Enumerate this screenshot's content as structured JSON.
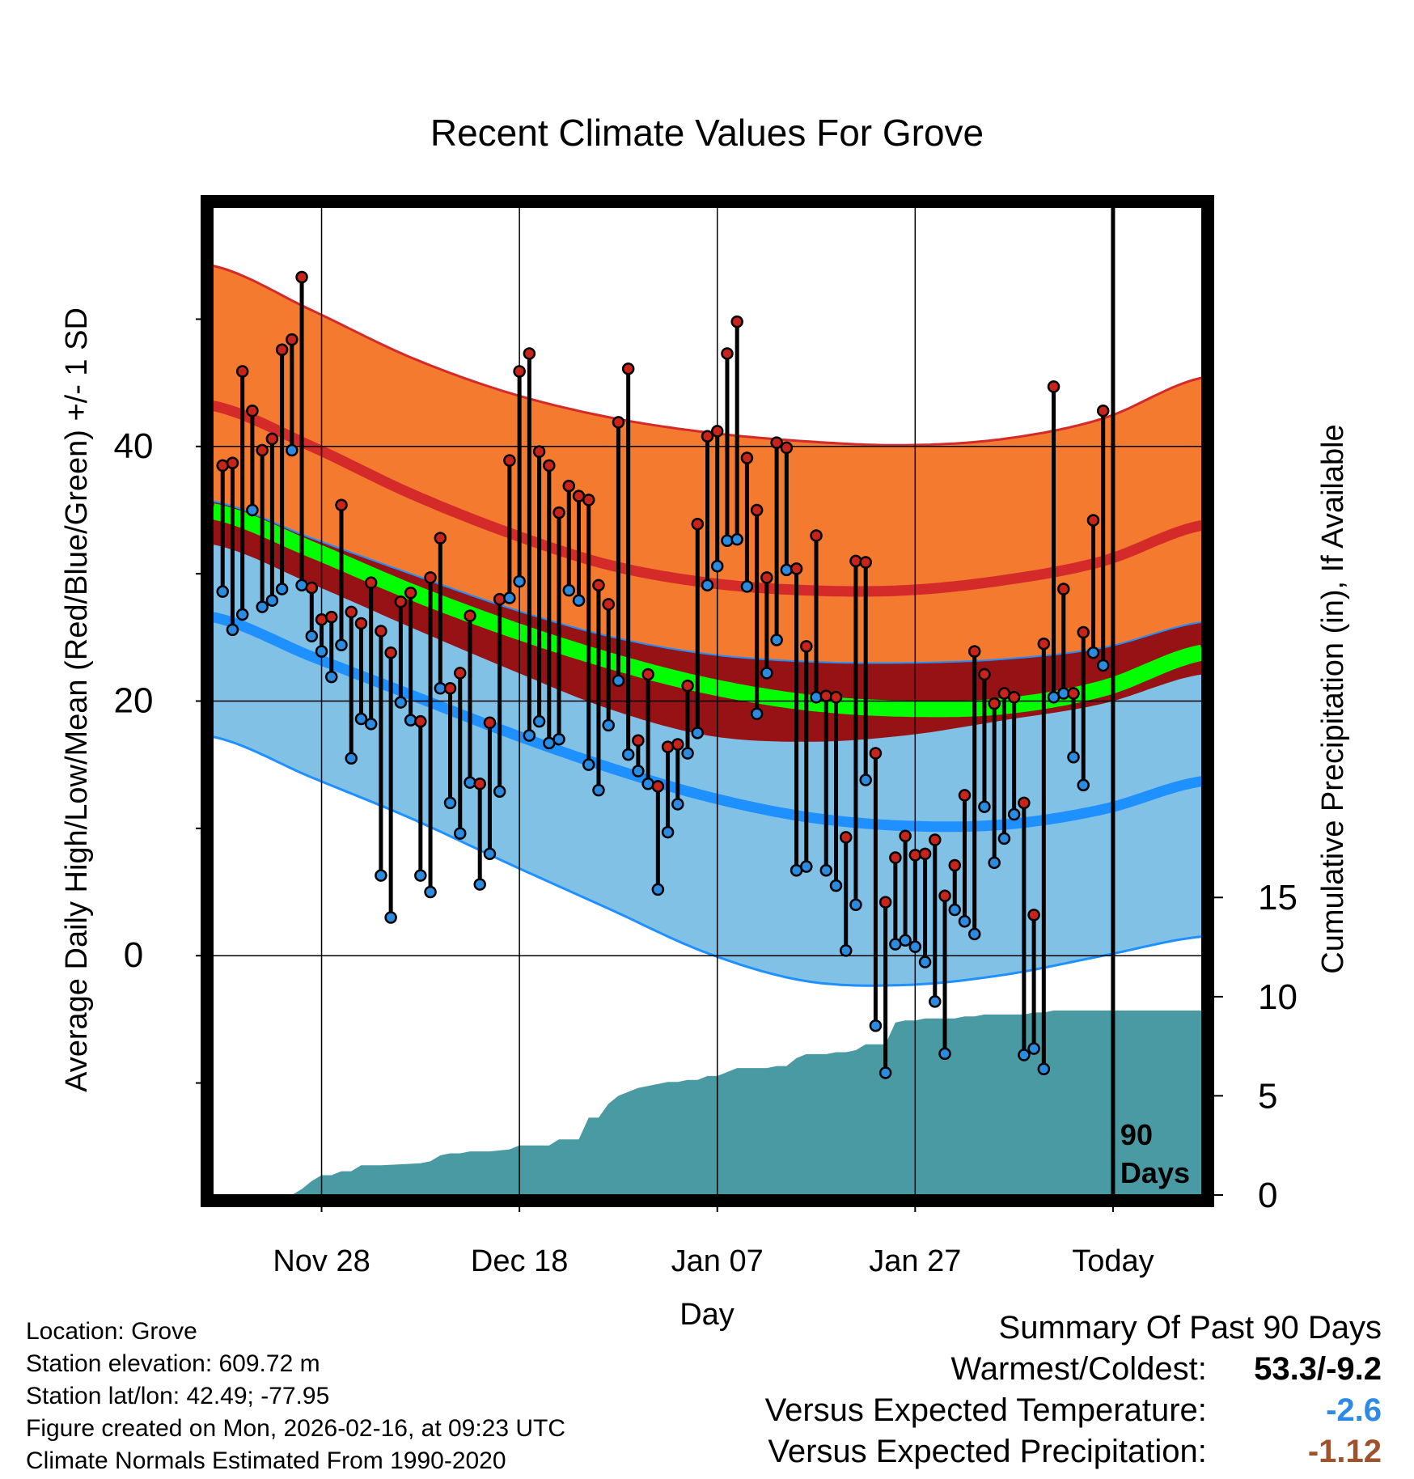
{
  "chart_data": {
    "type": "line",
    "title": "Recent Climate Values For Grove",
    "xlabel": "Day",
    "ylabel": "Average Daily High/Low/Mean (Red/Blue/Green) +/- 1 SD",
    "ylabel_right": "Cumulative Precipitation (in), If Available",
    "x_ticks": [
      "Nov 28",
      "Dec 18",
      "Jan 07",
      "Jan 27",
      "Today"
    ],
    "x_tick_days": [
      10,
      30,
      50,
      70,
      90
    ],
    "xlim": [
      -1,
      99
    ],
    "y_ticks": [
      0,
      20,
      40
    ],
    "ylim": [
      -18.8,
      58.8
    ],
    "y2_ticks": [
      0,
      5,
      10,
      15
    ],
    "y2lim": [
      0,
      49.8
    ],
    "today_marker_label": "90 Days",
    "today_day": 90,
    "normal_high": {
      "mean_days": [
        -1,
        9,
        19,
        29,
        39,
        49,
        59,
        69,
        79,
        89,
        99
      ],
      "mean": [
        43.2,
        40.0,
        36.3,
        33.2,
        30.7,
        29.3,
        28.7,
        28.7,
        29.5,
        31.0,
        33.8
      ],
      "plus_sd": [
        54.2,
        50.7,
        47.0,
        44.2,
        42.3,
        41.1,
        40.4,
        40.1,
        40.6,
        42.2,
        45.4
      ],
      "minus_sd": [
        32.3,
        29.2,
        25.8,
        22.5,
        19.4,
        17.3,
        16.8,
        17.3,
        18.5,
        19.8,
        22.1
      ]
    },
    "normal_low": {
      "mean": [
        26.6,
        23.5,
        20.5,
        17.5,
        14.8,
        12.5,
        10.9,
        10.2,
        10.3,
        11.5,
        13.7
      ],
      "plus_sd": [
        35.7,
        32.8,
        30.0,
        27.3,
        25.1,
        23.7,
        23.1,
        23.0,
        23.3,
        24.2,
        26.2
      ],
      "minus_sd": [
        17.2,
        14.0,
        10.8,
        7.2,
        3.7,
        0.2,
        -2.0,
        -2.3,
        -1.5,
        0.0,
        1.5
      ]
    },
    "normal_mean": {
      "mean": [
        34.9,
        31.9,
        28.6,
        25.7,
        23.2,
        21.2,
        19.9,
        19.4,
        19.6,
        21.0,
        23.8
      ]
    },
    "series": [
      {
        "name": "Observed High",
        "days": [
          0,
          1,
          2,
          3,
          4,
          5,
          6,
          7,
          8,
          9,
          10,
          11,
          12,
          13,
          14,
          15,
          16,
          17,
          18,
          19,
          20,
          21,
          22,
          23,
          24,
          25,
          26,
          27,
          28,
          29,
          30,
          31,
          32,
          33,
          34,
          35,
          36,
          37,
          38,
          39,
          40,
          41,
          42,
          43,
          44,
          45,
          46,
          47,
          48,
          49,
          50,
          51,
          52,
          53,
          54,
          55,
          56,
          57,
          58,
          59,
          60,
          61,
          62,
          63,
          64,
          65,
          66,
          67,
          68,
          69,
          70,
          71,
          72,
          73,
          74,
          75,
          76,
          77,
          78,
          79,
          80,
          81,
          82,
          83,
          84,
          85,
          86,
          87,
          88,
          89
        ],
        "values": [
          38.5,
          38.7,
          45.9,
          42.8,
          39.7,
          40.6,
          47.6,
          48.4,
          53.3,
          28.9,
          26.4,
          26.6,
          35.4,
          27.0,
          26.1,
          29.3,
          25.5,
          23.8,
          27.8,
          28.5,
          18.4,
          29.7,
          32.8,
          21.0,
          22.2,
          26.7,
          13.5,
          18.3,
          28.0,
          38.9,
          45.9,
          47.3,
          39.6,
          38.5,
          34.8,
          36.9,
          36.1,
          35.8,
          29.1,
          27.6,
          41.9,
          46.1,
          16.9,
          22.1,
          13.3,
          16.4,
          16.6,
          21.2,
          33.9,
          40.8,
          41.2,
          47.3,
          49.8,
          39.1,
          35.0,
          29.7,
          40.3,
          39.9,
          30.4,
          24.3,
          33.0,
          20.4,
          20.3,
          9.3,
          31.0,
          30.9,
          15.9,
          4.2,
          7.7,
          9.4,
          7.9,
          8.0,
          9.1,
          4.7,
          7.1,
          12.6,
          23.9,
          22.1,
          19.8,
          20.6,
          20.3,
          12.0,
          3.2,
          24.5,
          44.7,
          28.8,
          20.6,
          25.4,
          34.2,
          42.8
        ]
      },
      {
        "name": "Observed Low",
        "days": [
          0,
          1,
          2,
          3,
          4,
          5,
          6,
          7,
          8,
          9,
          10,
          11,
          12,
          13,
          14,
          15,
          16,
          17,
          18,
          19,
          20,
          21,
          22,
          23,
          24,
          25,
          26,
          27,
          28,
          29,
          30,
          31,
          32,
          33,
          34,
          35,
          36,
          37,
          38,
          39,
          40,
          41,
          42,
          43,
          44,
          45,
          46,
          47,
          48,
          49,
          50,
          51,
          52,
          53,
          54,
          55,
          56,
          57,
          58,
          59,
          60,
          61,
          62,
          63,
          64,
          65,
          66,
          67,
          68,
          69,
          70,
          71,
          72,
          73,
          74,
          75,
          76,
          77,
          78,
          79,
          80,
          81,
          82,
          83,
          84,
          85,
          86,
          87,
          88,
          89
        ],
        "values": [
          28.6,
          25.6,
          26.8,
          35.0,
          27.4,
          27.9,
          28.8,
          39.7,
          29.1,
          25.1,
          23.9,
          21.9,
          24.4,
          15.5,
          18.6,
          18.2,
          6.3,
          3.0,
          19.9,
          18.5,
          6.3,
          5.0,
          21.0,
          12.0,
          9.6,
          13.6,
          5.6,
          8.0,
          12.9,
          28.1,
          29.4,
          17.3,
          18.4,
          16.7,
          17.0,
          28.7,
          27.9,
          15.0,
          13.0,
          18.1,
          21.6,
          15.8,
          14.5,
          13.5,
          5.2,
          9.7,
          11.9,
          15.9,
          17.5,
          29.1,
          30.6,
          32.6,
          32.7,
          29.0,
          19.0,
          22.2,
          24.8,
          30.3,
          6.7,
          7.0,
          20.3,
          6.7,
          5.5,
          0.4,
          4.0,
          13.8,
          -5.5,
          -9.2,
          0.9,
          1.2,
          0.7,
          -0.5,
          -3.6,
          -7.7,
          3.6,
          2.7,
          1.7,
          11.7,
          7.3,
          9.2,
          11.1,
          -7.8,
          -7.3,
          -8.9,
          20.3,
          20.6,
          15.6,
          13.4,
          23.8,
          22.8
        ]
      },
      {
        "name": "Cumulative Precipitation",
        "days": [
          -1,
          7,
          8,
          9,
          10,
          11,
          12,
          13,
          14,
          15,
          16,
          20,
          21,
          22,
          23,
          24,
          25,
          26,
          27,
          29,
          30,
          31,
          32,
          33,
          34,
          35,
          36,
          37,
          38,
          39,
          40,
          41,
          42,
          43,
          44,
          45,
          46,
          47,
          48,
          49,
          50,
          51,
          52,
          53,
          54,
          55,
          56,
          57,
          58,
          59,
          60,
          61,
          62,
          63,
          64,
          65,
          66,
          67,
          68,
          69,
          70,
          71,
          72,
          73,
          74,
          75,
          76,
          77,
          78,
          79,
          80,
          81,
          82,
          83,
          84,
          85,
          86,
          87,
          88,
          89,
          90,
          99
        ],
        "values": [
          0.0,
          0.0,
          0.3,
          0.7,
          1.0,
          1.0,
          1.2,
          1.2,
          1.5,
          1.5,
          1.5,
          1.6,
          1.7,
          2.0,
          2.1,
          2.1,
          2.2,
          2.2,
          2.2,
          2.3,
          2.5,
          2.5,
          2.5,
          2.5,
          2.8,
          2.8,
          2.8,
          3.9,
          3.9,
          4.6,
          5.0,
          5.2,
          5.4,
          5.5,
          5.6,
          5.7,
          5.7,
          5.8,
          5.8,
          6.0,
          6.0,
          6.2,
          6.4,
          6.4,
          6.4,
          6.4,
          6.5,
          6.5,
          6.9,
          7.1,
          7.1,
          7.1,
          7.2,
          7.2,
          7.3,
          7.6,
          7.6,
          7.6,
          8.7,
          8.8,
          8.8,
          8.9,
          8.9,
          8.9,
          8.9,
          9.0,
          9.0,
          9.1,
          9.1,
          9.1,
          9.1,
          9.1,
          9.2,
          9.2,
          9.3,
          9.3,
          9.3,
          9.3,
          9.3,
          9.3,
          9.3,
          9.3
        ]
      }
    ]
  },
  "info": {
    "location": "Location: Grove",
    "elevation": "Station elevation: 609.72 m",
    "latlon": "Station lat/lon: 42.49; -77.95",
    "created": "Figure created on Mon, 2026-02-16, at 09:23 UTC",
    "normals": "Climate Normals Estimated From 1990-2020"
  },
  "summary": {
    "heading": "Summary Of Past 90 Days",
    "warm_cold_label": "Warmest/Coldest:",
    "warm_cold_value": "53.3/-9.2",
    "temp_label": "Versus Expected Temperature:",
    "temp_value": "-2.6",
    "temp_color": "#2e8ae6",
    "precip_label": "Versus Expected Precipitation:",
    "precip_value": "-1.12",
    "precip_color": "#a0522d"
  },
  "colors": {
    "high_band": "#f47a30",
    "high_line": "#d42a2a",
    "low_band": "#82c1e6",
    "low_line": "#1e90ff",
    "overlap_band": "#961214",
    "mean_band": "#00ff00",
    "precip_fill": "#4a9aa3",
    "high_dot": "#c8241c",
    "low_dot": "#2a8be0"
  }
}
